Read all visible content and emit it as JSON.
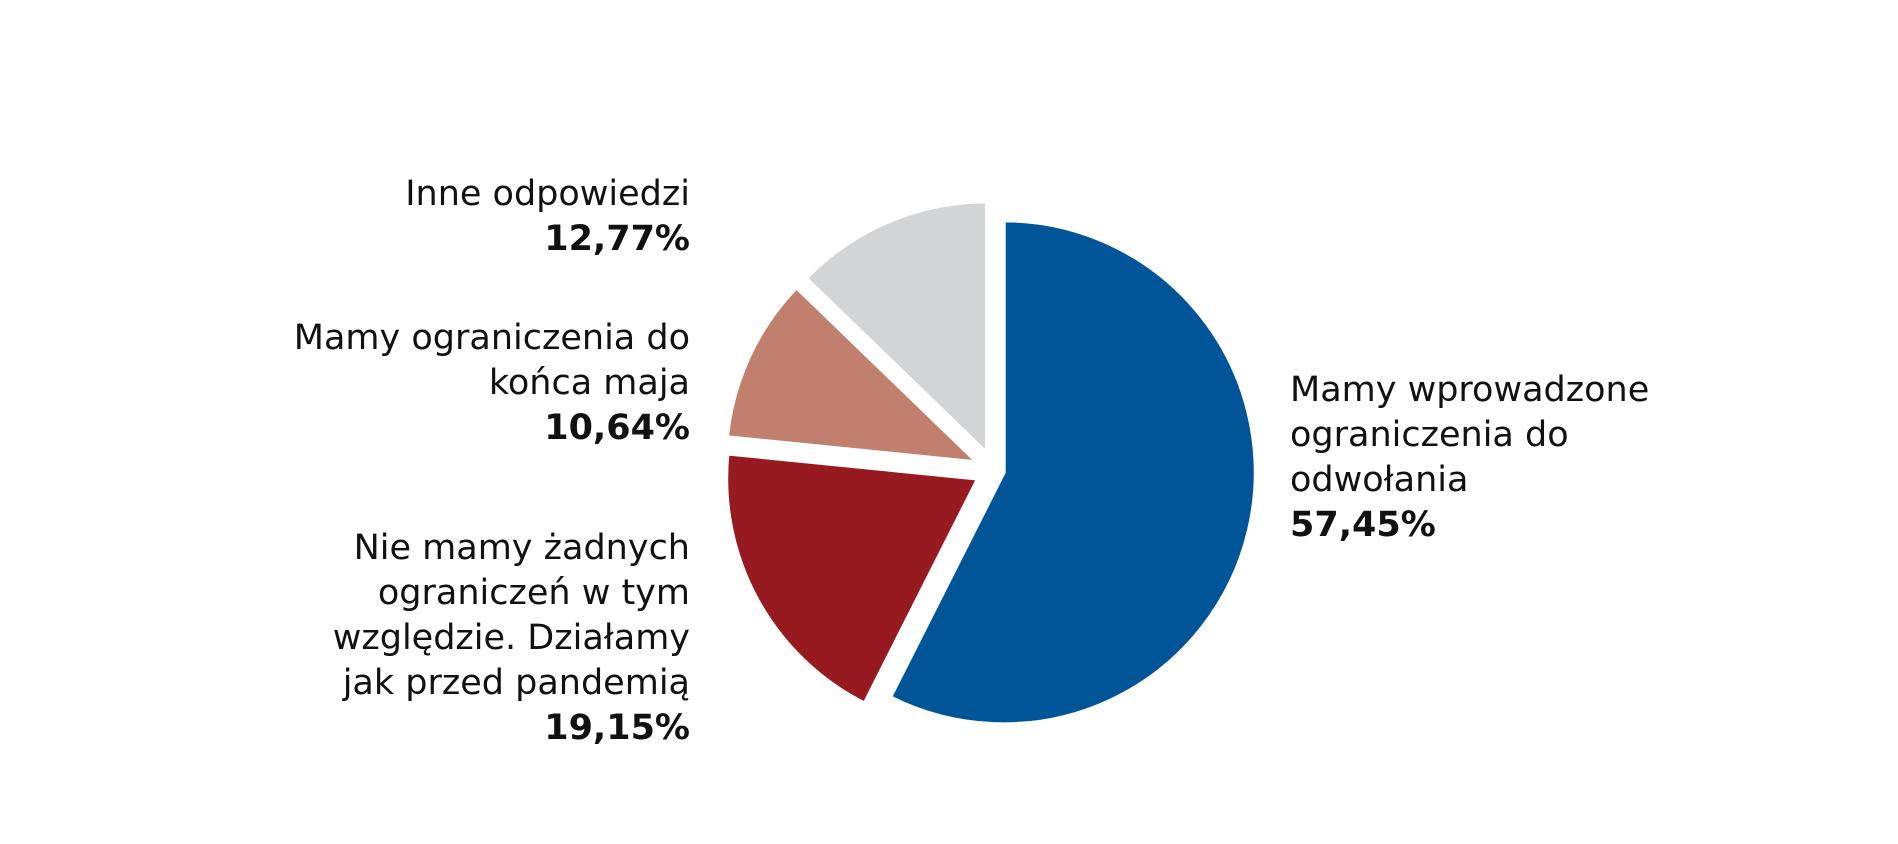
{
  "chart_data": {
    "type": "pie",
    "slices": [
      {
        "label": "Mamy wprowadzone ograniczenia do odwołania",
        "value": 57.45,
        "value_label": "57,45%",
        "color": "#005498"
      },
      {
        "label": "Nie mamy żadnych ograniczeń w tym względzie. Działamy jak przed pandemią",
        "value": 19.15,
        "value_label": "19,15%",
        "color": "#961a20"
      },
      {
        "label": "Mamy ograniczenia do końca maja",
        "value": 10.64,
        "value_label": "10,64%",
        "color": "#c1806e"
      },
      {
        "label": "Inne odpowiedzi",
        "value": 12.77,
        "value_label": "12,77%",
        "color": "#d3d4d6"
      }
    ],
    "start": "12 o'clock",
    "direction": "clockwise",
    "exploded": true,
    "separator_color": "#ffffff",
    "legend": "none (direct labels)"
  }
}
